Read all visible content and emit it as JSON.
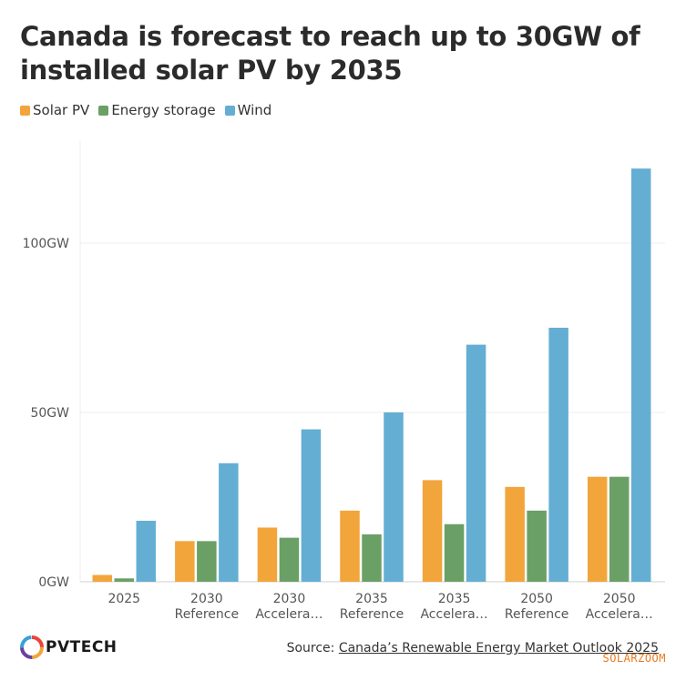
{
  "colors": {
    "solar": "#f2a53a",
    "storage": "#6aa065",
    "wind": "#64aed3"
  },
  "source": {
    "prefix": "Source: ",
    "link": "Canada’s Renewable Energy Market Outlook 2025"
  },
  "logo": {
    "text": "PVTECH"
  },
  "watermark": "SOLARZOOM",
  "chart_data": {
    "type": "bar",
    "title": "Canada is forecast to reach up to 30GW of installed solar PV by 2035",
    "categories": [
      [
        "2025"
      ],
      [
        "2030",
        "Reference"
      ],
      [
        "2030",
        "Accelera…"
      ],
      [
        "2035",
        "Reference"
      ],
      [
        "2035",
        "Accelera…"
      ],
      [
        "2050",
        "Reference"
      ],
      [
        "2050",
        "Accelera…"
      ]
    ],
    "series": [
      {
        "name": "Solar PV",
        "color_key": "solar",
        "values": [
          2,
          12,
          16,
          21,
          30,
          28,
          31
        ]
      },
      {
        "name": "Energy storage",
        "color_key": "storage",
        "values": [
          1,
          12,
          13,
          14,
          17,
          21,
          31
        ]
      },
      {
        "name": "Wind",
        "color_key": "wind",
        "values": [
          18,
          35,
          45,
          50,
          70,
          75,
          122
        ]
      }
    ],
    "y_ticks": [
      "0GW",
      "50GW",
      "100GW"
    ],
    "y_tick_values": [
      0,
      50,
      100
    ],
    "ylim": [
      0,
      130
    ],
    "grid": true,
    "legend": "top-left"
  }
}
